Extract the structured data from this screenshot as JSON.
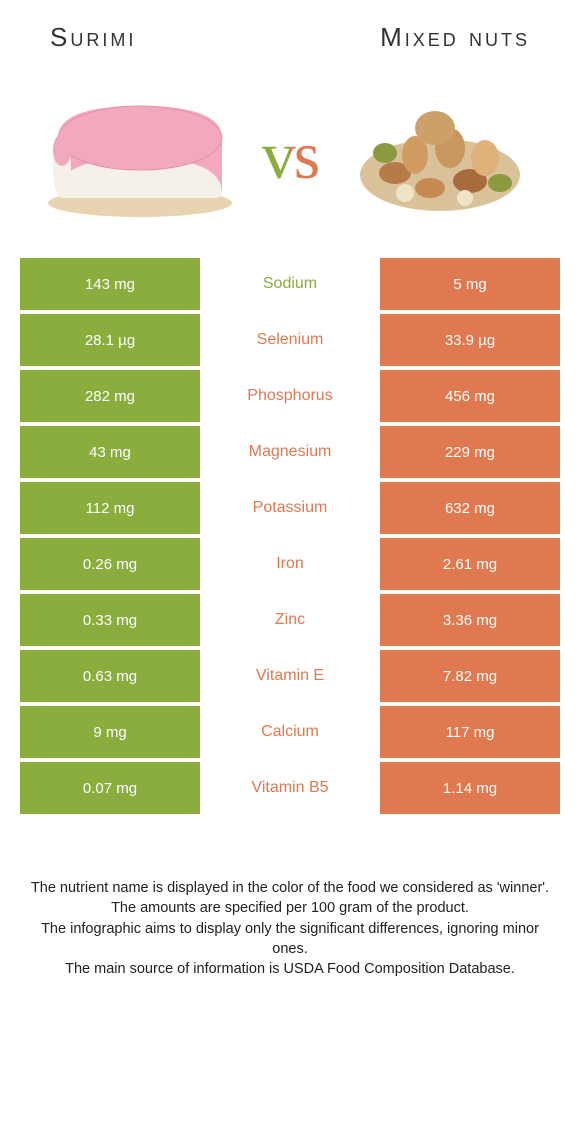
{
  "colors": {
    "green": "#8aad3e",
    "orange": "#e07850",
    "background": "#ffffff",
    "text": "#333333"
  },
  "title_left": "Surimi",
  "title_right": "Mixed nuts",
  "vs_label": "vs",
  "rows": [
    {
      "left": "143 mg",
      "name": "Sodium",
      "right": "5 mg",
      "winner": "left"
    },
    {
      "left": "28.1 µg",
      "name": "Selenium",
      "right": "33.9 µg",
      "winner": "right"
    },
    {
      "left": "282 mg",
      "name": "Phosphorus",
      "right": "456 mg",
      "winner": "right"
    },
    {
      "left": "43 mg",
      "name": "Magnesium",
      "right": "229 mg",
      "winner": "right"
    },
    {
      "left": "112 mg",
      "name": "Potassium",
      "right": "632 mg",
      "winner": "right"
    },
    {
      "left": "0.26 mg",
      "name": "Iron",
      "right": "2.61 mg",
      "winner": "right"
    },
    {
      "left": "0.33 mg",
      "name": "Zinc",
      "right": "3.36 mg",
      "winner": "right"
    },
    {
      "left": "0.63 mg",
      "name": "Vitamin E",
      "right": "7.82 mg",
      "winner": "right"
    },
    {
      "left": "9 mg",
      "name": "Calcium",
      "right": "117 mg",
      "winner": "right"
    },
    {
      "left": "0.07 mg",
      "name": "Vitamin B5",
      "right": "1.14 mg",
      "winner": "right"
    }
  ],
  "footer_lines": [
    "The nutrient name is displayed in the color of the food we considered as 'winner'.",
    "The amounts are specified per 100 gram of the product.",
    "The infographic aims to display only the significant differences, ignoring minor ones.",
    "The main source of information is USDA Food Composition Database."
  ]
}
